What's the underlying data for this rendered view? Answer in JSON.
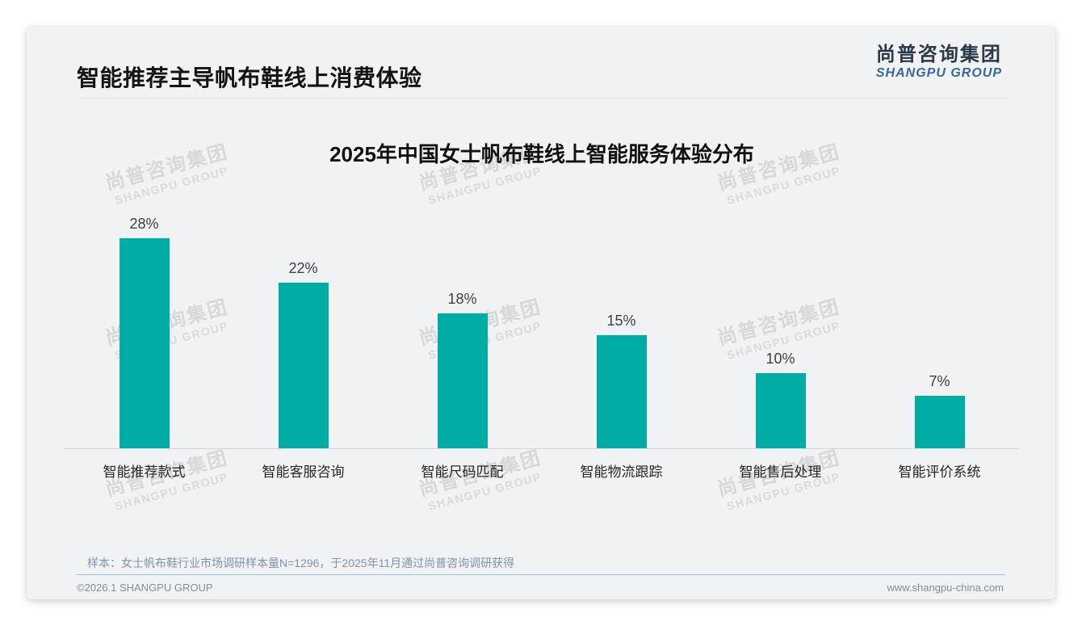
{
  "slide": {
    "title": "智能推荐主导帆布鞋线上消费体验"
  },
  "logo": {
    "cn": "尚普咨询集团",
    "en": "SHANGPU GROUP"
  },
  "watermark": {
    "cn": "尚普咨询集团",
    "en": "SHANGPU GROUP"
  },
  "chart_data": {
    "type": "bar",
    "title": "2025年中国女士帆布鞋线上智能服务体验分布",
    "categories": [
      "智能推荐款式",
      "智能客服咨询",
      "智能尺码匹配",
      "智能物流跟踪",
      "智能售后处理",
      "智能评价系统"
    ],
    "values": [
      28,
      22,
      18,
      15,
      10,
      7
    ],
    "value_labels": [
      "28%",
      "22%",
      "18%",
      "15%",
      "10%",
      "7%"
    ],
    "unit": "%",
    "bar_color": "#00ADA6",
    "ylim": [
      0,
      30
    ],
    "grid": false,
    "legend": false
  },
  "footer": {
    "note": "样本：女士帆布鞋行业市场调研样本量N=1296，于2025年11月通过尚普咨询调研获得",
    "copyright": "©2026.1 SHANGPU GROUP",
    "website": "www.shangpu-china.com"
  }
}
